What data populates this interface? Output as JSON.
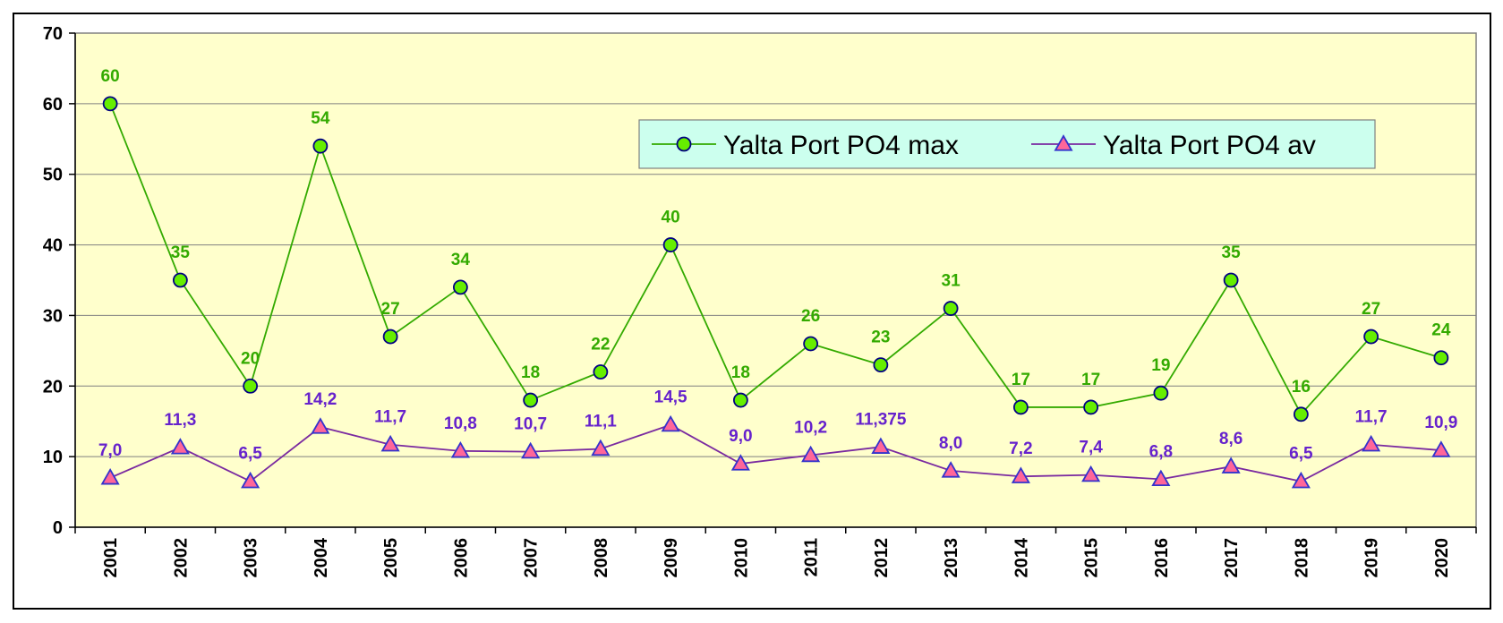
{
  "chart_data": {
    "type": "line",
    "title": "",
    "xlabel": "",
    "ylabel": "",
    "ylim": [
      0,
      70
    ],
    "yticks": [
      0,
      10,
      20,
      30,
      40,
      50,
      60,
      70
    ],
    "grid": "horizontal",
    "legend_position": "top-right",
    "plot_background": "#ffffcc",
    "categories": [
      "2001",
      "2002",
      "2003",
      "2004",
      "2005",
      "2006",
      "2007",
      "2008",
      "2009",
      "2010",
      "2011",
      "2012",
      "2013",
      "2014",
      "2015",
      "2016",
      "2017",
      "2018",
      "2019",
      "2020"
    ],
    "series": [
      {
        "name": "Yalta Port PO4 max",
        "values": [
          60,
          35,
          20,
          54,
          27,
          34,
          18,
          22,
          40,
          18,
          26,
          23,
          31,
          17,
          17,
          19,
          35,
          16,
          27,
          24
        ],
        "labels": [
          "60",
          "35",
          "20",
          "54",
          "27",
          "34",
          "18",
          "22",
          "40",
          "18",
          "26",
          "23",
          "31",
          "17",
          "17",
          "19",
          "35",
          "16",
          "27",
          "24"
        ],
        "line_color": "#33aa00",
        "marker": "circle",
        "marker_fill": "#66ee00",
        "marker_stroke": "#000080",
        "label_color": "#33aa00"
      },
      {
        "name": "Yalta Port PO4 av",
        "values": [
          7.0,
          11.3,
          6.5,
          14.2,
          11.7,
          10.8,
          10.7,
          11.1,
          14.5,
          9.0,
          10.2,
          11.375,
          8.0,
          7.2,
          7.4,
          6.8,
          8.6,
          6.5,
          11.7,
          10.9
        ],
        "labels": [
          "7,0",
          "11,3",
          "6,5",
          "14,2",
          "11,7",
          "10,8",
          "10,7",
          "11,1",
          "14,5",
          "9,0",
          "10,2",
          "11,375",
          "8,0",
          "7,2",
          "7,4",
          "6,8",
          "8,6",
          "6,5",
          "11,7",
          "10,9"
        ],
        "line_color": "#7a2aa0",
        "marker": "triangle",
        "marker_fill": "#ff6699",
        "marker_stroke": "#3333cc",
        "label_color": "#6622cc"
      }
    ],
    "legend_background": "#ccffee"
  }
}
